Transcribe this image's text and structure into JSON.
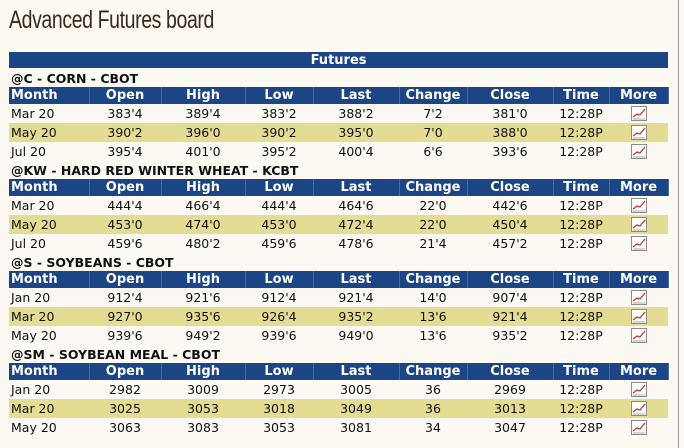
{
  "header": {
    "title": "Advanced Futures board"
  },
  "table": {
    "caption": "Futures",
    "columns": [
      "Month",
      "Open",
      "High",
      "Low",
      "Last",
      "Change",
      "Close",
      "Time",
      "More"
    ],
    "sections": [
      {
        "title": "@C - CORN - CBOT",
        "rows": [
          [
            "Mar 20",
            "383'4",
            "389'4",
            "383'2",
            "388'2",
            "7'2",
            "381'0",
            "12:28P"
          ],
          [
            "May 20",
            "390'2",
            "396'0",
            "390'2",
            "395'0",
            "7'0",
            "388'0",
            "12:28P"
          ],
          [
            "Jul 20",
            "395'4",
            "401'0",
            "395'2",
            "400'4",
            "6'6",
            "393'6",
            "12:28P"
          ]
        ]
      },
      {
        "title": "@KW - HARD RED WINTER WHEAT - KCBT",
        "rows": [
          [
            "Mar 20",
            "444'4",
            "466'4",
            "444'4",
            "464'6",
            "22'0",
            "442'6",
            "12:28P"
          ],
          [
            "May 20",
            "453'0",
            "474'0",
            "453'0",
            "472'4",
            "22'0",
            "450'4",
            "12:28P"
          ],
          [
            "Jul 20",
            "459'6",
            "480'2",
            "459'6",
            "478'6",
            "21'4",
            "457'2",
            "12:28P"
          ]
        ]
      },
      {
        "title": "@S - SOYBEANS - CBOT",
        "rows": [
          [
            "Jan 20",
            "912'4",
            "921'6",
            "912'4",
            "921'4",
            "14'0",
            "907'4",
            "12:28P"
          ],
          [
            "Mar 20",
            "927'0",
            "935'6",
            "926'4",
            "935'2",
            "13'6",
            "921'4",
            "12:28P"
          ],
          [
            "May 20",
            "939'6",
            "949'2",
            "939'6",
            "949'0",
            "13'6",
            "935'2",
            "12:28P"
          ]
        ]
      },
      {
        "title": "@SM - SOYBEAN MEAL - CBOT",
        "rows": [
          [
            "Jan 20",
            "2982",
            "3009",
            "2973",
            "3005",
            "36",
            "2969",
            "12:28P"
          ],
          [
            "Mar 20",
            "3025",
            "3053",
            "3018",
            "3049",
            "36",
            "3013",
            "12:28P"
          ],
          [
            "May 20",
            "3063",
            "3083",
            "3053",
            "3081",
            "34",
            "3047",
            "12:28P"
          ]
        ]
      }
    ]
  }
}
